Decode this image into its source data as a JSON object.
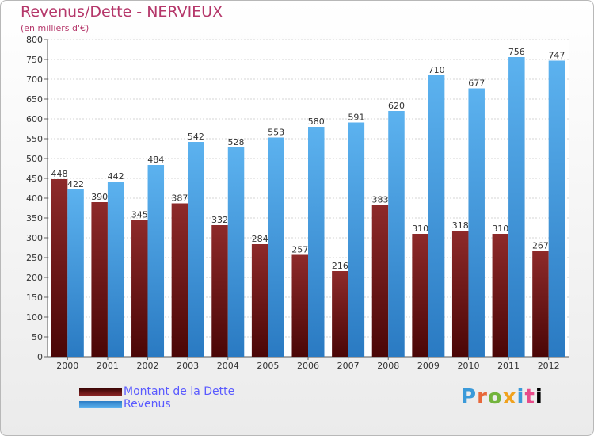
{
  "chart_data": {
    "type": "bar",
    "title": "Revenus/Dette - NERVIEUX",
    "subtitle": "(en milliers d'€)",
    "categories": [
      "2000",
      "2001",
      "2002",
      "2003",
      "2004",
      "2005",
      "2006",
      "2007",
      "2008",
      "2009",
      "2010",
      "2011",
      "2012"
    ],
    "series": [
      {
        "name": "Montant de la Dette",
        "color": "#7a1a1a",
        "values": [
          448,
          390,
          345,
          387,
          332,
          284,
          257,
          216,
          383,
          310,
          318,
          310,
          267
        ]
      },
      {
        "name": "Revenus",
        "color": "#4aa3e6",
        "values": [
          422,
          442,
          484,
          542,
          528,
          553,
          580,
          591,
          620,
          710,
          677,
          756,
          747
        ]
      }
    ],
    "ylim": [
      0,
      800
    ],
    "yticks": [
      0,
      50,
      100,
      150,
      200,
      250,
      300,
      350,
      400,
      450,
      500,
      550,
      600,
      650,
      700,
      750,
      800
    ],
    "grid": true,
    "legend_position": "bottom-left"
  },
  "branding": {
    "logo_letters": [
      "P",
      "r",
      "o",
      "x",
      "i",
      "t",
      "i"
    ]
  }
}
